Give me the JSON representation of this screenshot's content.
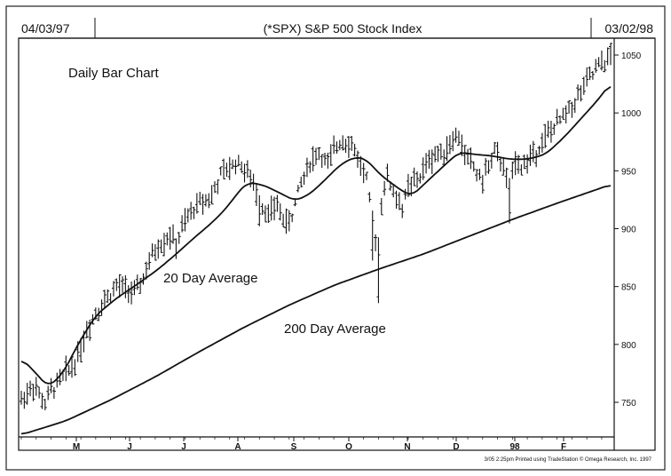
{
  "header": {
    "start_date": "04/03/97",
    "title": "(*SPX) S&P 500 Stock Index",
    "end_date": "03/02/98"
  },
  "footer": {
    "credit": "3/05  2:25pm Printed using TradeStation © Omega Research, Inc. 1997"
  },
  "chart_data": {
    "type": "line",
    "title": "(*SPX) S&P 500 Stock Index",
    "annotations": [
      "Daily Bar Chart",
      "20 Day Average",
      "200 Day Average"
    ],
    "xlabel": "",
    "ylabel": "",
    "x_ticks": [
      "M",
      "J",
      "J",
      "A",
      "S",
      "O",
      "N",
      "D",
      "98",
      "F"
    ],
    "y_ticks": [
      750,
      800,
      850,
      900,
      950,
      1000,
      1050
    ],
    "ylim": [
      721,
      1058
    ],
    "grid": false,
    "legend": "none",
    "colors": {
      "ink": "#111111",
      "background": "#ffffff"
    },
    "series": [
      {
        "name": "Daily Bar Chart",
        "kind": "ohlc-bars",
        "control_points": [
          [
            0,
            752
          ],
          [
            4,
            765
          ],
          [
            8,
            748
          ],
          [
            10,
            760
          ],
          [
            14,
            772
          ],
          [
            18,
            785
          ],
          [
            22,
            812
          ],
          [
            25,
            828
          ],
          [
            28,
            838
          ],
          [
            32,
            850
          ],
          [
            36,
            848
          ],
          [
            38,
            843
          ],
          [
            40,
            852
          ],
          [
            45,
            882
          ],
          [
            50,
            895
          ],
          [
            52,
            885
          ],
          [
            54,
            900
          ],
          [
            58,
            918
          ],
          [
            61,
            925
          ],
          [
            64,
            928
          ],
          [
            67,
            946
          ],
          [
            70,
            952
          ],
          [
            72,
            958
          ],
          [
            74,
            955
          ],
          [
            77,
            943
          ],
          [
            80,
            925
          ],
          [
            83,
            912
          ],
          [
            86,
            920
          ],
          [
            89,
            905
          ],
          [
            91,
            912
          ],
          [
            94,
            940
          ],
          [
            97,
            958
          ],
          [
            100,
            966
          ],
          [
            103,
            955
          ],
          [
            106,
            972
          ],
          [
            108,
            978
          ],
          [
            110,
            975
          ],
          [
            112,
            968
          ],
          [
            114,
            955
          ],
          [
            116,
            942
          ],
          [
            118,
            903
          ],
          [
            120,
            885
          ],
          [
            121,
            925
          ],
          [
            123,
            945
          ],
          [
            125,
            932
          ],
          [
            128,
            918
          ],
          [
            130,
            935
          ],
          [
            134,
            945
          ],
          [
            137,
            960
          ],
          [
            140,
            965
          ],
          [
            143,
            970
          ],
          [
            145,
            978
          ],
          [
            147,
            978
          ],
          [
            149,
            965
          ],
          [
            151,
            958
          ],
          [
            153,
            948
          ],
          [
            155,
            942
          ],
          [
            157,
            955
          ],
          [
            159,
            965
          ],
          [
            162,
            955
          ],
          [
            164,
            930
          ],
          [
            166,
            962
          ],
          [
            168,
            954
          ],
          [
            170,
            958
          ],
          [
            172,
            965
          ],
          [
            175,
            975
          ],
          [
            178,
            985
          ],
          [
            180,
            990
          ],
          [
            184,
            1003
          ],
          [
            188,
            1018
          ],
          [
            191,
            1030
          ],
          [
            194,
            1040
          ],
          [
            197,
            1046
          ],
          [
            198,
            1050
          ]
        ]
      },
      {
        "name": "20 Day Average",
        "kind": "line",
        "points": [
          [
            0,
            788
          ],
          [
            5,
            775
          ],
          [
            9,
            763
          ],
          [
            14,
            775
          ],
          [
            19,
            800
          ],
          [
            25,
            825
          ],
          [
            32,
            840
          ],
          [
            39,
            852
          ],
          [
            46,
            865
          ],
          [
            52,
            878
          ],
          [
            58,
            892
          ],
          [
            64,
            905
          ],
          [
            69,
            918
          ],
          [
            73,
            932
          ],
          [
            76,
            940
          ],
          [
            81,
            938
          ],
          [
            86,
            932
          ],
          [
            92,
            924
          ],
          [
            97,
            930
          ],
          [
            102,
            942
          ],
          [
            107,
            955
          ],
          [
            112,
            962
          ],
          [
            116,
            960
          ],
          [
            120,
            948
          ],
          [
            126,
            936
          ],
          [
            131,
            928
          ],
          [
            136,
            940
          ],
          [
            141,
            952
          ],
          [
            147,
            966
          ],
          [
            153,
            964
          ],
          [
            158,
            963
          ],
          [
            164,
            960
          ],
          [
            170,
            960
          ],
          [
            176,
            964
          ],
          [
            182,
            978
          ],
          [
            188,
            995
          ],
          [
            194,
            1012
          ],
          [
            198,
            1026
          ]
        ]
      },
      {
        "name": "200 Day Average",
        "kind": "line",
        "points": [
          [
            0,
            722
          ],
          [
            15,
            734
          ],
          [
            30,
            752
          ],
          [
            45,
            772
          ],
          [
            60,
            794
          ],
          [
            75,
            815
          ],
          [
            90,
            834
          ],
          [
            105,
            851
          ],
          [
            120,
            865
          ],
          [
            135,
            878
          ],
          [
            150,
            893
          ],
          [
            165,
            908
          ],
          [
            180,
            922
          ],
          [
            198,
            938
          ]
        ]
      }
    ]
  }
}
